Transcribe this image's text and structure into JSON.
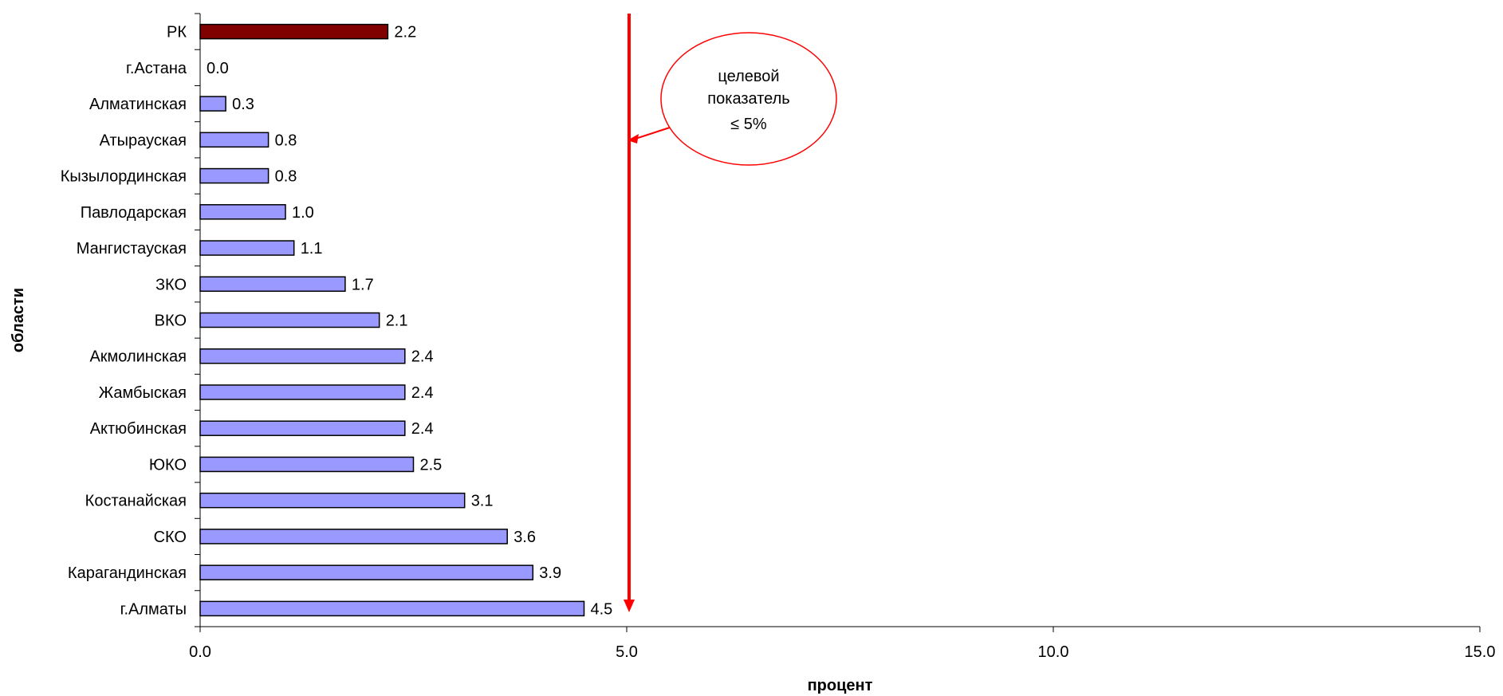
{
  "chart_data": {
    "type": "bar",
    "orientation": "horizontal",
    "categories": [
      "РК",
      "г.Астана",
      "Алматинская",
      "Атырауская",
      "Кызылординская",
      "Павлодарская",
      "Мангистауская",
      "ЗКО",
      "ВКО",
      "Акмолинская",
      "Жамбыская",
      "Актюбинская",
      "ЮКО",
      "Костанайская",
      "СКО",
      "Карагандинская",
      "г.Алматы"
    ],
    "values": [
      2.2,
      0.0,
      0.3,
      0.8,
      0.8,
      1.0,
      1.1,
      1.7,
      2.1,
      2.4,
      2.4,
      2.4,
      2.5,
      3.1,
      3.6,
      3.9,
      4.5
    ],
    "value_labels": [
      "2.2",
      "0.0",
      "0.3",
      "0.8",
      "0.8",
      "1.0",
      "1.1",
      "1.7",
      "2.1",
      "2.4",
      "2.4",
      "2.4",
      "2.5",
      "3.1",
      "3.6",
      "3.9",
      "4.5"
    ],
    "highlight_category": "РК",
    "xlim": [
      0,
      15
    ],
    "x_ticks": [
      0,
      5,
      10,
      15
    ],
    "x_tick_labels": [
      "0.0",
      "5.0",
      "10.0",
      "15.0"
    ],
    "xlabel": "процент",
    "ylabel": "области",
    "grid": false,
    "target_line": {
      "value": 5
    },
    "annotation": {
      "lines": [
        "целевой",
        "показатель",
        "≤ 5%"
      ]
    },
    "colors": {
      "bar": "#9999FF",
      "highlight_bar": "#800000",
      "bar_outline": "#000000",
      "target_line": "#FF0000",
      "callout_border": "#FF0000"
    }
  }
}
